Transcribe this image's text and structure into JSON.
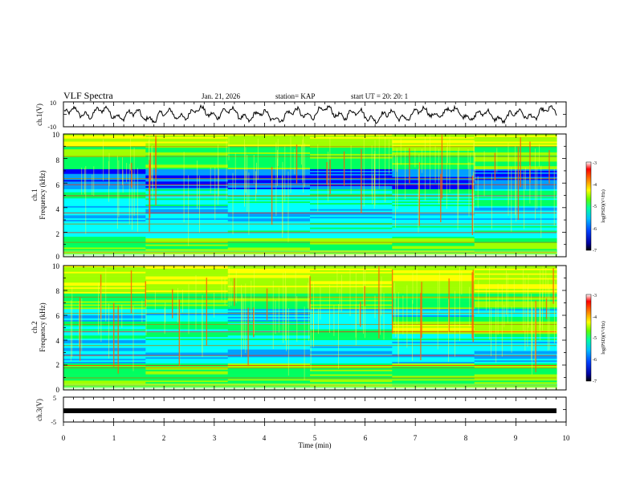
{
  "header": {
    "title": "VLF Spectra",
    "date": "Jan. 21, 2026",
    "station": "station= KAP",
    "start": "start  UT =  20: 20: 1"
  },
  "chart_data": [
    {
      "type": "line",
      "name": "ch1-waveform",
      "ylabel": "ch.1(V)",
      "ylim": [
        -10,
        10
      ],
      "yticks": [
        "10",
        "-10"
      ],
      "x_range_min": [
        0,
        9.8
      ],
      "description_values": "oscillating voltage, roughly between -5 and 6 V"
    },
    {
      "type": "heatmap",
      "name": "ch1-spectrogram",
      "ylabel": "ch.1\nFrequency (kHz)",
      "ylim": [
        0,
        10
      ],
      "yticks": [
        "0",
        "2",
        "4",
        "6",
        "8",
        "10"
      ],
      "x_range_min": [
        0,
        9.8
      ]
    },
    {
      "type": "heatmap",
      "name": "ch2-spectrogram",
      "ylabel": "ch.2\nFrequency (kHz)",
      "ylim": [
        0,
        10
      ],
      "yticks": [
        "0",
        "2",
        "4",
        "6",
        "8",
        "10"
      ],
      "x_range_min": [
        0,
        9.8
      ]
    },
    {
      "type": "line",
      "name": "ch3-signal",
      "ylabel": "ch.3(V)",
      "ylim": [
        -5,
        5
      ],
      "yticks": [
        "5",
        "0",
        "-5"
      ],
      "constant_value": 0
    }
  ],
  "xaxis": {
    "label": "Time  (min)",
    "range": [
      0,
      10
    ],
    "ticks": [
      "0",
      "1",
      "2",
      "3",
      "4",
      "5",
      "6",
      "7",
      "8",
      "9",
      "10"
    ]
  },
  "colorbar": {
    "label": "log(PSD)(V²/Hz)",
    "range": [
      -7,
      -3
    ],
    "ticks": [
      "-3",
      "-4",
      "-5",
      "-6",
      "-7"
    ]
  },
  "colors": {
    "axis": "#000000",
    "colormap": [
      "#000080",
      "#0000ff",
      "#00a0ff",
      "#00ffff",
      "#00ff60",
      "#a0ff00",
      "#ffff00",
      "#ff8000",
      "#ff0000",
      "#ffffff"
    ]
  }
}
